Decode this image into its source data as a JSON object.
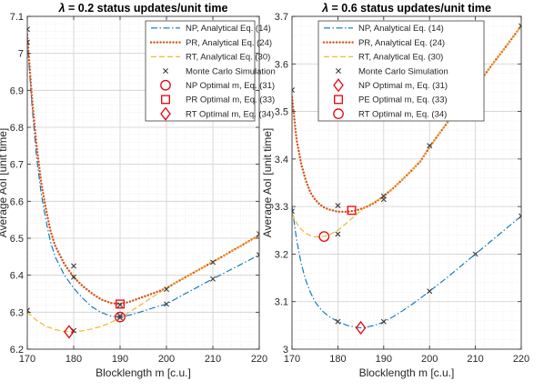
{
  "chart_data": [
    {
      "type": "line",
      "title": "λ = 0.2 status updates/unit time",
      "title_symbol": "λ",
      "title_rest": " = 0.2 status updates/unit time",
      "xlabel": "Blocklength m [c.u.]",
      "ylabel": "Average AoI [unit time]",
      "xlim": [
        170,
        220
      ],
      "ylim": [
        6.2,
        7.1
      ],
      "xticks": [
        170,
        180,
        190,
        200,
        210,
        220
      ],
      "yticks": [
        6.2,
        6.3,
        6.4,
        6.5,
        6.6,
        6.7,
        6.8,
        6.9,
        7,
        7.1
      ],
      "ytick_labels": [
        "6.2",
        "6.3",
        "6.4",
        "6.5",
        "6.6",
        "6.7",
        "6.8",
        "6.9",
        "7",
        "7.1"
      ],
      "grid": true,
      "legend_position": "top-right",
      "series": [
        {
          "name": "NP, Analytical Eq. (14)",
          "style": "dashdot",
          "color": "#0072BD",
          "x": [
            170,
            171,
            172,
            173,
            174,
            175,
            176,
            178,
            180,
            182,
            184,
            186,
            188,
            190,
            192,
            194,
            196,
            198,
            200,
            202,
            204,
            206,
            208,
            210,
            212,
            214,
            216,
            218,
            220
          ],
          "y": [
            7.04,
            6.86,
            6.72,
            6.62,
            6.55,
            6.49,
            6.45,
            6.4,
            6.365,
            6.337,
            6.314,
            6.299,
            6.29,
            6.287,
            6.292,
            6.299,
            6.307,
            6.315,
            6.322,
            6.336,
            6.35,
            6.363,
            6.377,
            6.39,
            6.403,
            6.416,
            6.429,
            6.442,
            6.455
          ]
        },
        {
          "name": "PR, Analytical Eq. (24)",
          "style": "dotted",
          "color": "#D95319",
          "x": [
            170,
            171,
            172,
            173,
            174,
            175,
            176,
            178,
            180,
            182,
            184,
            186,
            188,
            190,
            192,
            194,
            196,
            198,
            200,
            202,
            204,
            206,
            208,
            210,
            212,
            214,
            216,
            218,
            220
          ],
          "y": [
            7.05,
            6.88,
            6.75,
            6.65,
            6.58,
            6.52,
            6.48,
            6.43,
            6.395,
            6.37,
            6.35,
            6.334,
            6.325,
            6.322,
            6.328,
            6.337,
            6.346,
            6.355,
            6.365,
            6.38,
            6.394,
            6.408,
            6.422,
            6.436,
            6.45,
            6.465,
            6.479,
            6.494,
            6.508
          ]
        },
        {
          "name": "RT, Analytical Eq. (30)",
          "style": "dashed",
          "color": "#EDB120",
          "x": [
            170,
            172,
            174,
            176,
            178,
            180,
            182,
            184,
            186,
            188,
            190,
            192,
            194,
            196,
            198,
            200,
            202,
            204,
            206,
            208,
            210,
            212,
            214,
            216,
            218,
            220
          ],
          "y": [
            6.3,
            6.278,
            6.262,
            6.253,
            6.248,
            6.247,
            6.25,
            6.255,
            6.262,
            6.272,
            6.285,
            6.3,
            6.316,
            6.333,
            6.349,
            6.365,
            6.38,
            6.394,
            6.408,
            6.422,
            6.436,
            6.45,
            6.465,
            6.479,
            6.494,
            6.508
          ]
        },
        {
          "name": "Monte Carlo Simulation",
          "style": "markers-x",
          "color": "#3c3c3c",
          "x": [
            170,
            170,
            170,
            180,
            180,
            180,
            190,
            190,
            190,
            200,
            200,
            210,
            210,
            220,
            220
          ],
          "y": [
            7.065,
            7.03,
            6.305,
            6.425,
            6.395,
            6.25,
            6.32,
            6.29,
            6.285,
            6.362,
            6.322,
            6.435,
            6.39,
            6.512,
            6.455
          ]
        },
        {
          "name": "NP Optimal m, Eq. (31)",
          "style": "marker-circle",
          "color": "#E8000B",
          "x": [
            190
          ],
          "y": [
            6.287
          ]
        },
        {
          "name": "PR Optimal m, Eq. (33)",
          "style": "marker-square",
          "color": "#E8000B",
          "x": [
            190
          ],
          "y": [
            6.322
          ]
        },
        {
          "name": "RT Optimal m, Eq. (34)",
          "style": "marker-diamond",
          "color": "#E8000B",
          "x": [
            179
          ],
          "y": [
            6.247
          ]
        }
      ]
    },
    {
      "type": "line",
      "title": "λ = 0.6 status updates/unit time",
      "title_symbol": "λ",
      "title_rest": " = 0.6 status updates/unit time",
      "xlabel": "Blocklength m [c.u.]",
      "ylabel": "Average AoI [unit time]",
      "xlim": [
        170,
        220
      ],
      "ylim": [
        3,
        3.7
      ],
      "xticks": [
        170,
        180,
        190,
        200,
        210,
        220
      ],
      "yticks": [
        3,
        3.1,
        3.2,
        3.3,
        3.4,
        3.5,
        3.6,
        3.7
      ],
      "ytick_labels": [
        "3",
        "3.1",
        "3.2",
        "3.3",
        "3.4",
        "3.5",
        "3.6",
        "3.7"
      ],
      "grid": true,
      "legend_position": "top-left",
      "series": [
        {
          "name": "NP, Analytical Eq. (14)",
          "style": "dashdot",
          "color": "#0072BD",
          "x": [
            170,
            171,
            172,
            173,
            174,
            175,
            176,
            177,
            178,
            180,
            182,
            184,
            185,
            186,
            188,
            190,
            192,
            194,
            196,
            198,
            200,
            202,
            204,
            206,
            208,
            210,
            212,
            214,
            216,
            218,
            220
          ],
          "y": [
            3.3,
            3.23,
            3.18,
            3.145,
            3.12,
            3.1,
            3.087,
            3.077,
            3.069,
            3.058,
            3.05,
            3.046,
            3.045,
            3.046,
            3.05,
            3.057,
            3.068,
            3.08,
            3.093,
            3.107,
            3.122,
            3.137,
            3.152,
            3.168,
            3.184,
            3.2,
            3.216,
            3.232,
            3.248,
            3.264,
            3.28
          ]
        },
        {
          "name": "PR, Analytical Eq. (24)",
          "style": "dotted",
          "color": "#D95319",
          "x": [
            170,
            171,
            172,
            173,
            174,
            175,
            176,
            177,
            178,
            180,
            182,
            184,
            186,
            188,
            190,
            192,
            194,
            196,
            198,
            200,
            202,
            204,
            206,
            208,
            210,
            212,
            214,
            216,
            218,
            220
          ],
          "y": [
            3.53,
            3.44,
            3.39,
            3.355,
            3.33,
            3.315,
            3.305,
            3.298,
            3.294,
            3.289,
            3.289,
            3.292,
            3.298,
            3.308,
            3.322,
            3.338,
            3.356,
            3.375,
            3.395,
            3.425,
            3.452,
            3.478,
            3.504,
            3.528,
            3.552,
            3.577,
            3.603,
            3.628,
            3.654,
            3.68
          ]
        },
        {
          "name": "RT, Analytical Eq. (30)",
          "style": "dashed",
          "color": "#EDB120",
          "x": [
            170,
            171,
            172,
            173,
            174,
            175,
            176,
            177,
            178,
            180,
            182,
            184,
            186,
            188,
            190,
            192,
            194,
            196,
            198,
            200,
            202,
            204,
            206,
            208,
            210,
            212,
            214,
            216,
            218,
            220
          ],
          "y": [
            3.285,
            3.265,
            3.252,
            3.244,
            3.239,
            3.236,
            3.236,
            3.237,
            3.24,
            3.25,
            3.266,
            3.283,
            3.299,
            3.31,
            3.322,
            3.338,
            3.356,
            3.375,
            3.395,
            3.425,
            3.452,
            3.478,
            3.504,
            3.528,
            3.552,
            3.577,
            3.603,
            3.628,
            3.654,
            3.68
          ]
        },
        {
          "name": "Monte Carlo Simulation",
          "style": "markers-x",
          "color": "#3c3c3c",
          "x": [
            170,
            170,
            180,
            180,
            180,
            190,
            190,
            190,
            200,
            200,
            210,
            210,
            220,
            220
          ],
          "y": [
            3.545,
            3.29,
            3.302,
            3.242,
            3.058,
            3.322,
            3.315,
            3.058,
            3.428,
            3.122,
            3.55,
            3.2,
            3.68,
            3.28
          ]
        },
        {
          "name": "NP Optimal m, Eq. (31)",
          "style": "marker-diamond",
          "color": "#E8000B",
          "x": [
            185
          ],
          "y": [
            3.045
          ]
        },
        {
          "name": "PE Optimal m, Eq. (33)",
          "style": "marker-square",
          "color": "#E8000B",
          "x": [
            183
          ],
          "y": [
            3.292
          ]
        },
        {
          "name": "RT Optimal m, Eq. (34)",
          "style": "marker-circle",
          "color": "#E8000B",
          "x": [
            177
          ],
          "y": [
            3.237
          ]
        }
      ]
    }
  ]
}
